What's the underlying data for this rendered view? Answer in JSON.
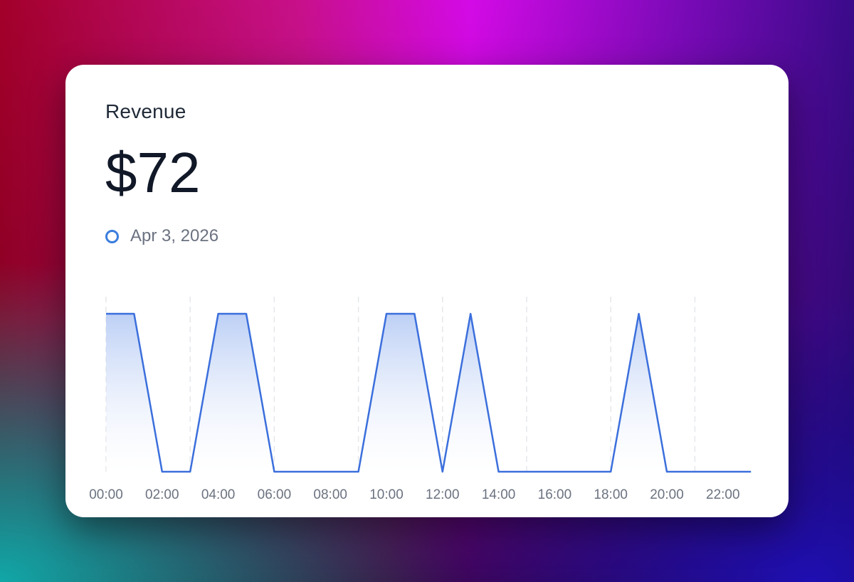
{
  "card": {
    "title": "Revenue",
    "value": "$72",
    "legend_label": "Apr 3, 2026"
  },
  "colors": {
    "line": "#3b6fdc",
    "area_top": "#b9cdf5",
    "area_bottom": "#ffffff",
    "legend_ring": "#3b7ddd",
    "gridline": "#e5e7eb"
  },
  "chart_data": {
    "type": "area",
    "title": "",
    "xlabel": "",
    "ylabel": "",
    "x_ticks": [
      "00:00",
      "02:00",
      "04:00",
      "06:00",
      "08:00",
      "10:00",
      "12:00",
      "14:00",
      "16:00",
      "18:00",
      "20:00",
      "22:00"
    ],
    "grid": "vertical dashed",
    "series": [
      {
        "name": "Apr 3, 2026",
        "points": [
          [
            0,
            1
          ],
          [
            1,
            1
          ],
          [
            2,
            0
          ],
          [
            3,
            0
          ],
          [
            4,
            1
          ],
          [
            5,
            1
          ],
          [
            6,
            0
          ],
          [
            7,
            0
          ],
          [
            8,
            0
          ],
          [
            9,
            0
          ],
          [
            10,
            1
          ],
          [
            11,
            1
          ],
          [
            12,
            0
          ],
          [
            13,
            1
          ],
          [
            14,
            0
          ],
          [
            15,
            0
          ],
          [
            16,
            0
          ],
          [
            17,
            0
          ],
          [
            18,
            0
          ],
          [
            19,
            1
          ],
          [
            20,
            0
          ],
          [
            21,
            0
          ],
          [
            22,
            0
          ],
          [
            23,
            0
          ]
        ]
      }
    ],
    "ylim": [
      0,
      1
    ]
  }
}
